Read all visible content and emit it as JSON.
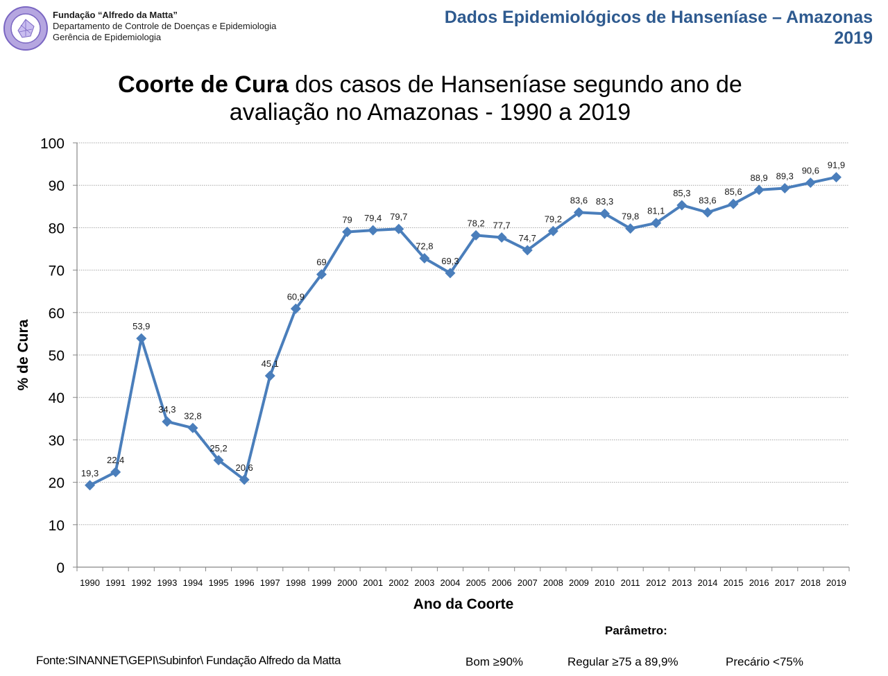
{
  "header": {
    "org_name": "Fundação “Alfredo da Matta”",
    "department": "Departamento de Controle de Doenças e Epidemiologia",
    "management": "Gerência de Epidemiologia",
    "logo_icon": "foundation-seal-logo",
    "report_title": "Dados Epidemiológicos de Hanseníase – Amazonas",
    "report_year": "2019"
  },
  "title_bold": "Coorte de Cura",
  "title_rest_line1": " dos casos de Hanseníase segundo ano de",
  "title_line2": "avaliação no Amazonas - 1990 a 2019",
  "chart_data": {
    "type": "line",
    "title": "Coorte de Cura dos casos de Hanseníase segundo ano de avaliação no Amazonas - 1990 a 2019",
    "xlabel": "Ano da Coorte",
    "ylabel": "% de Cura",
    "ylim": [
      0,
      100
    ],
    "yticks": [
      0,
      10,
      20,
      30,
      40,
      50,
      60,
      70,
      80,
      90,
      100
    ],
    "grid": true,
    "line_color": "#4a7ebb",
    "marker": "diamond",
    "categories": [
      "1990",
      "1991",
      "1992",
      "1993",
      "1994",
      "1995",
      "1996",
      "1997",
      "1998",
      "1999",
      "2000",
      "2001",
      "2002",
      "2003",
      "2004",
      "2005",
      "2006",
      "2007",
      "2008",
      "2009",
      "2010",
      "2011",
      "2012",
      "2013",
      "2014",
      "2015",
      "2016",
      "2017",
      "2018",
      "2019"
    ],
    "series": [
      {
        "name": "% de Cura",
        "values": [
          19.3,
          22.4,
          53.9,
          34.3,
          32.8,
          25.2,
          20.6,
          45.1,
          60.9,
          69,
          79,
          79.4,
          79.7,
          72.8,
          69.3,
          78.2,
          77.7,
          74.7,
          79.2,
          83.6,
          83.3,
          79.8,
          81.1,
          85.3,
          83.6,
          85.6,
          88.9,
          89.3,
          90.6,
          91.9
        ],
        "labels": [
          "19,3",
          "22,4",
          "53,9",
          "34,3",
          "32,8",
          "25,2",
          "20,6",
          "45,1",
          "60,9",
          "69",
          "79",
          "79,4",
          "79,7",
          "72,8",
          "69,3",
          "78,2",
          "77,7",
          "74,7",
          "79,2",
          "83,6",
          "83,3",
          "79,8",
          "81,1",
          "85,3",
          "83,6",
          "85,6",
          "88,9",
          "89,3",
          "90,6",
          "91,9"
        ]
      }
    ]
  },
  "footer": {
    "source": "Fonte:SINANNET\\GEPI\\Subinfor\\ Fundação Alfredo da Matta",
    "parameter_title": "Parâmetro:",
    "parameters": [
      "Bom ≥90%",
      "Regular ≥75 a 89,9%",
      "Precário <75%"
    ]
  }
}
